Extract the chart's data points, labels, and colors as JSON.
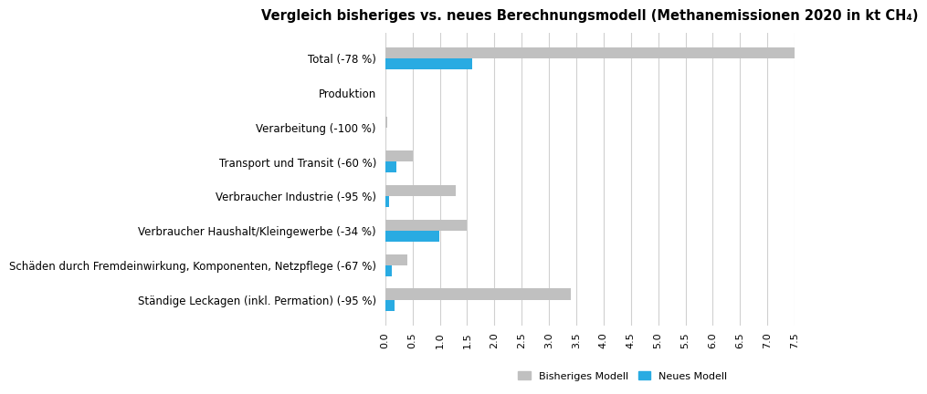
{
  "title": "Vergleich bisheriges vs. neues Berechnungsmodell (Methanemissionen 2020 in kt CH₄)",
  "categories": [
    "Total (-78 %)",
    "Produktion",
    "Verarbeitung (-100 %)",
    "Transport und Transit (-60 %)",
    "Verbraucher Industrie (-95 %)",
    "Verbraucher Haushalt/Kleingewerbe (-34 %)",
    "Schäden durch Fremdeinwirkung, Komponenten, Netzpflege (-67 %)",
    "Ständige Leckagen (inkl. Permation) (-95 %)"
  ],
  "old_values": [
    7.5,
    0.0,
    0.04,
    0.5,
    1.3,
    1.5,
    0.4,
    3.4
  ],
  "new_values": [
    1.6,
    0.0,
    0.0,
    0.2,
    0.065,
    0.99,
    0.13,
    0.17
  ],
  "old_color": "#c0c0c0",
  "new_color": "#29abe2",
  "bar_height": 0.32,
  "xlim": [
    0.0,
    7.5
  ],
  "xticks": [
    0.0,
    0.5,
    1.0,
    1.5,
    2.0,
    2.5,
    3.0,
    3.5,
    4.0,
    4.5,
    5.0,
    5.5,
    6.0,
    6.5,
    7.0,
    7.5
  ],
  "xtick_labels": [
    "0.0",
    "0.5",
    "1.0",
    "1.5",
    "2.0",
    "2.5",
    "3.0",
    "3.5",
    "4.0",
    "4.5",
    "5.0",
    "5.5",
    "6.0",
    "6.5",
    "7.0",
    "7.5"
  ],
  "legend_labels": [
    "Bisheriges Modell",
    "Neues Modell"
  ],
  "grid_color": "#d0d0d0",
  "title_fontsize": 10.5,
  "label_fontsize": 8.5,
  "tick_fontsize": 8.0
}
